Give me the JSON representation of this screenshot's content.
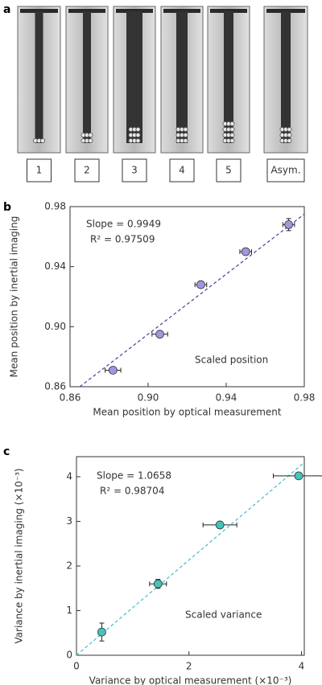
{
  "panel_a": {
    "label": "a",
    "panels": [
      "1",
      "2",
      "3",
      "4",
      "5",
      "Asym."
    ]
  },
  "chart_data": [
    {
      "type": "scatter",
      "panel": "b",
      "xlabel": "Mean position by optical measurement",
      "ylabel": "Mean position by inertial imaging",
      "annotations": [
        "Slope = 0.9949",
        "R² = 0.97509",
        "Scaled position"
      ],
      "xlim": [
        0.86,
        0.98
      ],
      "ylim": [
        0.86,
        0.98
      ],
      "xticks": [
        {
          "value": 0.86,
          "label": "0.86"
        },
        {
          "value": 0.9,
          "label": "0.90"
        },
        {
          "value": 0.94,
          "label": "0.94"
        },
        {
          "value": 0.98,
          "label": "0.98"
        }
      ],
      "yticks": [
        {
          "value": 0.86,
          "label": "0.86"
        },
        {
          "value": 0.9,
          "label": "0.90"
        },
        {
          "value": 0.94,
          "label": "0.94"
        },
        {
          "value": 0.98,
          "label": "0.98"
        }
      ],
      "series": [
        {
          "type": "scatter",
          "color": "#a196e0",
          "x": [
            0.882,
            0.906,
            0.927,
            0.95,
            0.972
          ],
          "y": [
            0.871,
            0.895,
            0.928,
            0.95,
            0.968
          ],
          "xerr": [
            0.004,
            0.004,
            0.003,
            0.003,
            0.003
          ],
          "yerr": [
            0.001,
            0.001,
            0.001,
            0.001,
            0.004
          ]
        },
        {
          "type": "line",
          "color": "#4a3f9a",
          "x": [
            0.865,
            0.98
          ],
          "y": [
            0.86,
            0.975
          ]
        }
      ]
    },
    {
      "type": "scatter",
      "panel": "c",
      "xlabel": "Variance by optical measurement (×10⁻³)",
      "ylabel": "Variance by inertial imaging (×10⁻³)",
      "annotations": [
        "Slope = 1.0658",
        "R² = 0.98704",
        "Scaled variance"
      ],
      "xlim": [
        0,
        4.05
      ],
      "ylim": [
        0,
        4.45
      ],
      "xticks": [
        0,
        2,
        4
      ],
      "yticks": [
        0,
        1,
        2,
        3,
        4
      ],
      "series": [
        {
          "type": "scatter",
          "color": "#45c4b8",
          "x": [
            0.45,
            1.45,
            2.55,
            3.95
          ],
          "y": [
            0.52,
            1.6,
            2.92,
            4.02
          ],
          "xerr": [
            0.05,
            0.15,
            0.3,
            0.45
          ],
          "yerr": [
            0.2,
            0.1,
            0.07,
            0.05
          ]
        },
        {
          "type": "line",
          "color": "#3fbfcf",
          "x": [
            0,
            4.05
          ],
          "y": [
            0,
            4.32
          ]
        }
      ]
    }
  ]
}
